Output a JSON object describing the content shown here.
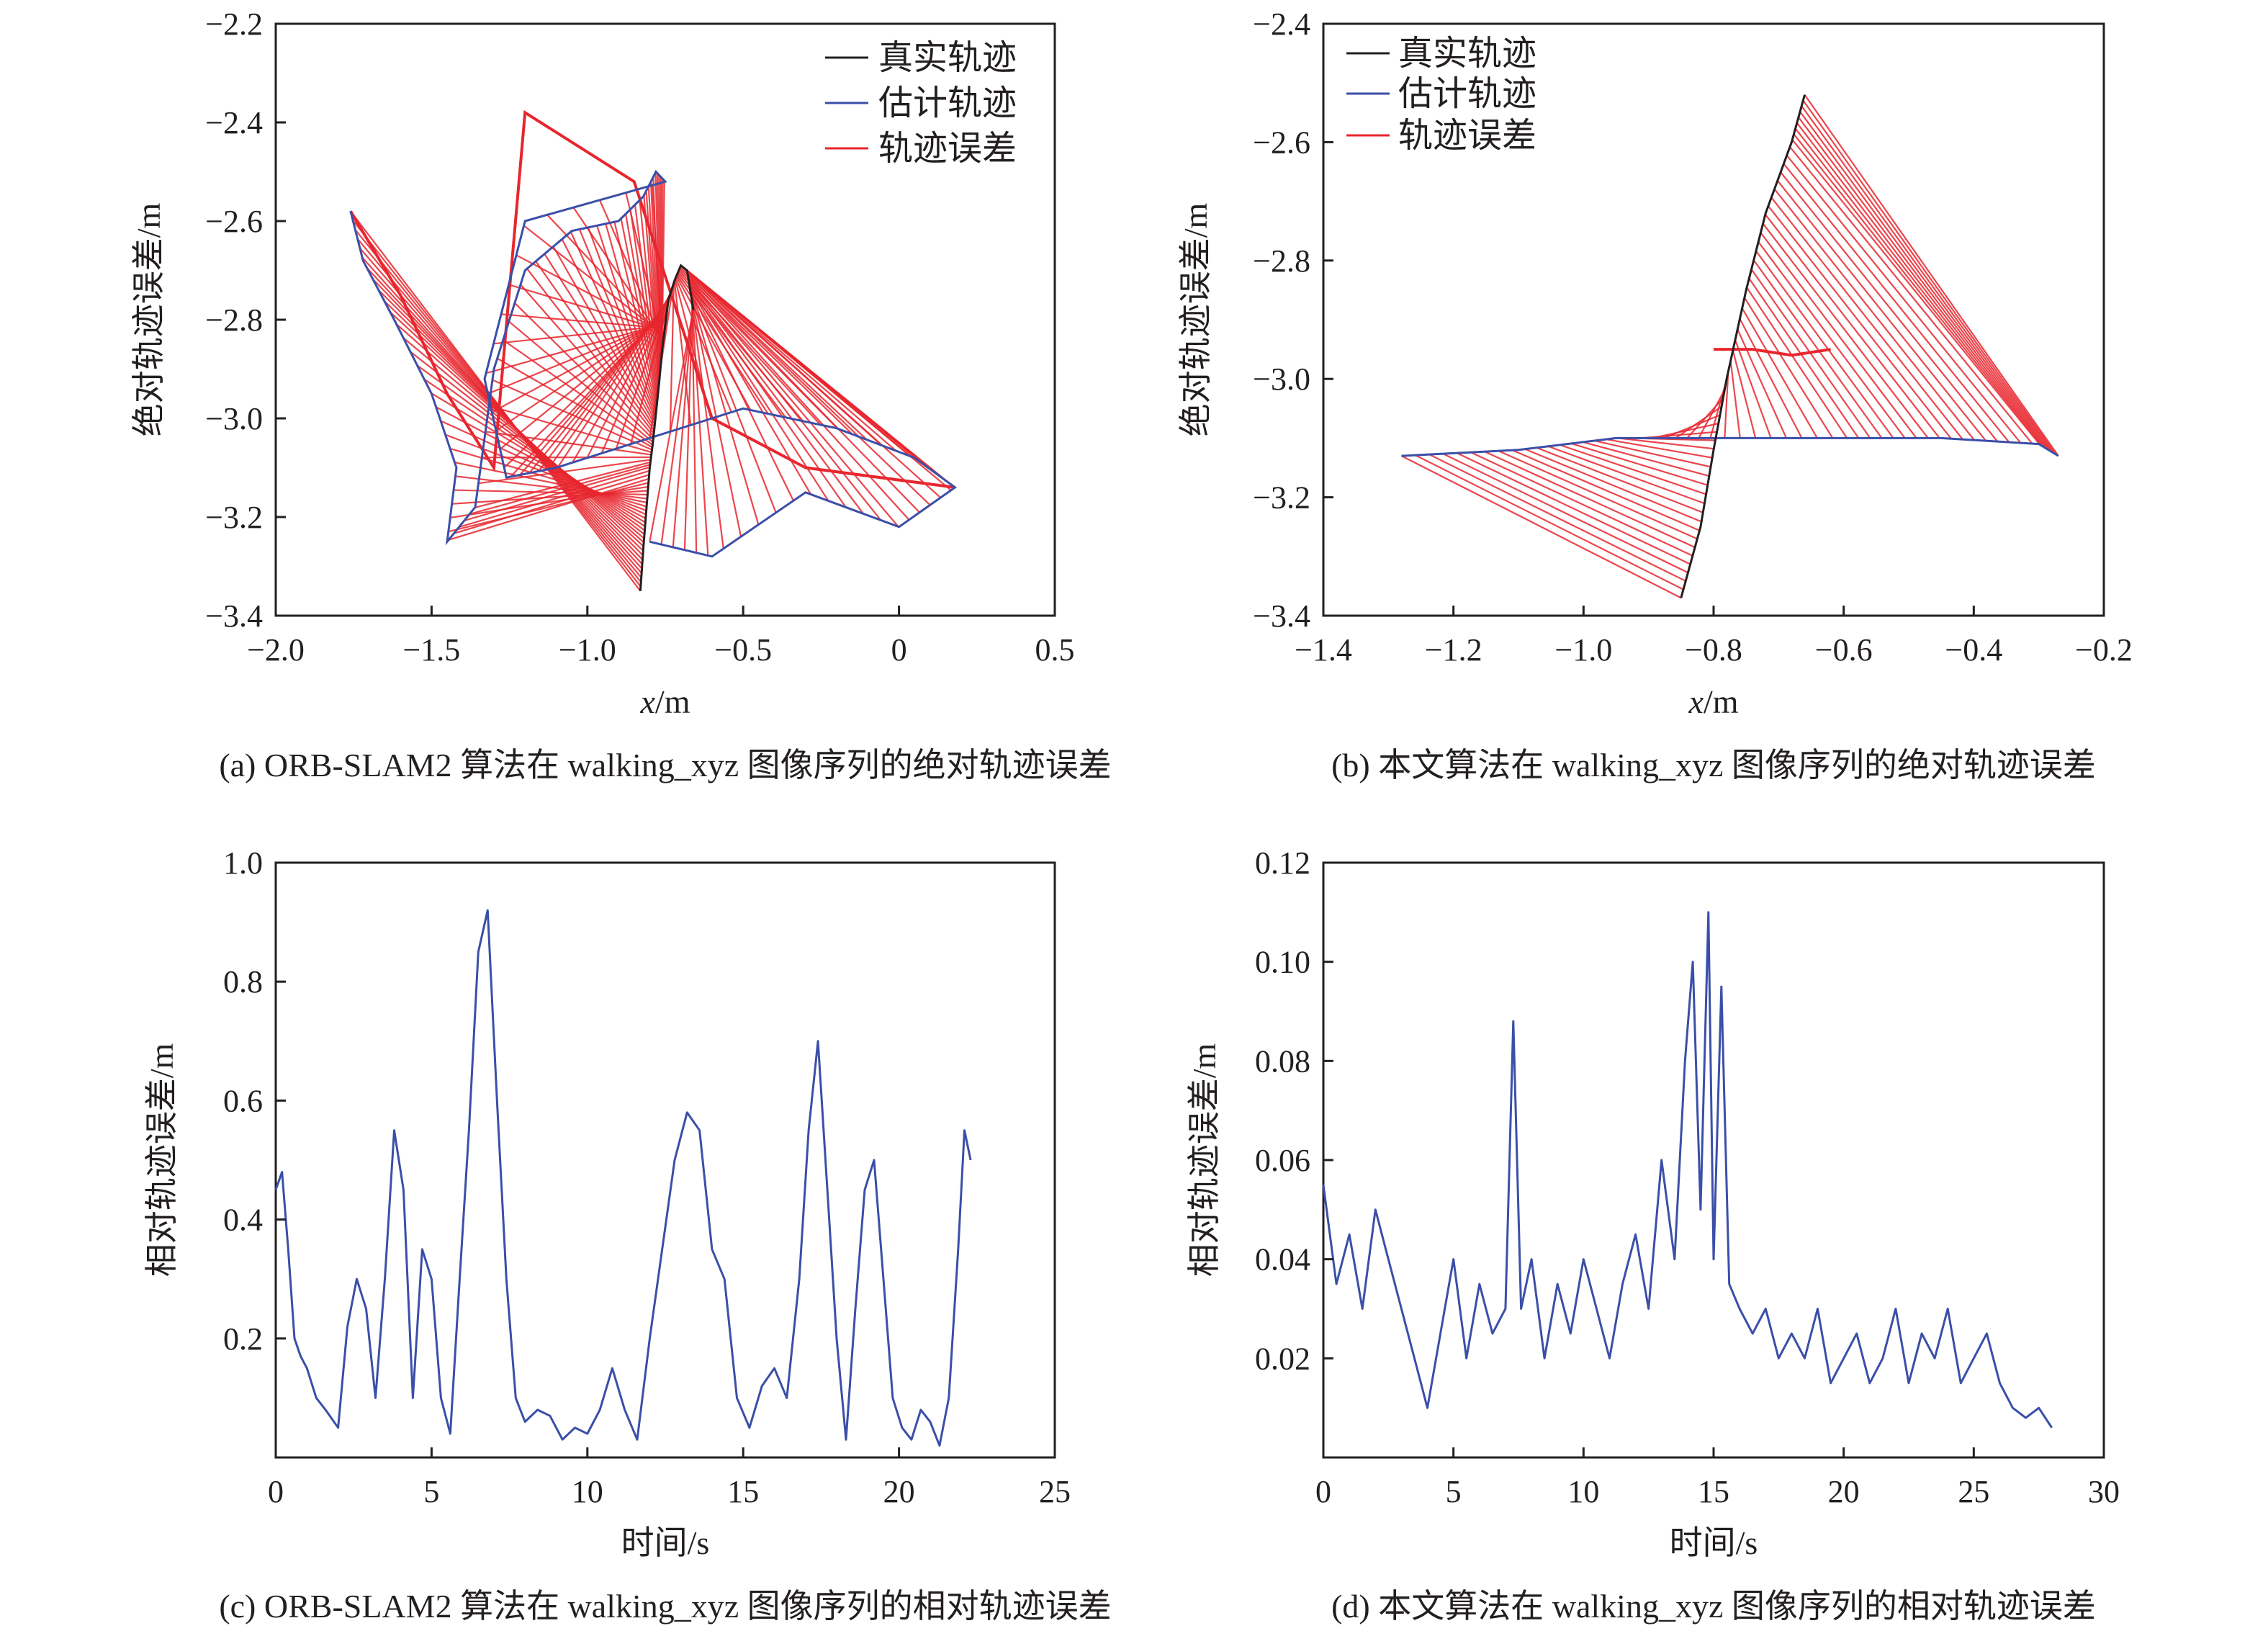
{
  "chart_data": [
    {
      "id": "a",
      "type": "line",
      "caption": "(a) ORB-SLAM2 算法在 walking_xyz 图像序列的绝对轨迹误差",
      "xlabel_var": "x",
      "xlabel_unit": "/m",
      "ylabel": "绝对轨迹误差/m",
      "xlim": [
        -2.0,
        0.5
      ],
      "ylim": [
        -3.4,
        -2.2
      ],
      "xticks": [
        "−2.0",
        "−1.5",
        "−1.0",
        "−0.5",
        "0",
        "0.5"
      ],
      "yticks": [
        "−2.2",
        "−2.4",
        "−2.6",
        "−2.8",
        "−3.0",
        "−3.2",
        "−3.4"
      ],
      "legend": {
        "position": "top-right",
        "entries": [
          "真实轨迹",
          "估计轨迹",
          "轨迹误差"
        ]
      },
      "colors": {
        "gt": "#231f20",
        "est": "#3b4fa8",
        "err": "#e8262e"
      },
      "series": [
        {
          "name": "真实轨迹",
          "x": [
            -0.83,
            -0.82,
            -0.81,
            -0.8,
            -0.79,
            -0.78,
            -0.77,
            -0.76,
            -0.75,
            -0.74,
            -0.72,
            -0.7,
            -0.68,
            -0.67,
            -0.66
          ],
          "y": [
            -3.35,
            -3.26,
            -3.18,
            -3.1,
            -3.05,
            -2.99,
            -2.93,
            -2.86,
            -2.81,
            -2.76,
            -2.72,
            -2.69,
            -2.7,
            -2.74,
            -2.78
          ]
        },
        {
          "name": "估计轨迹",
          "x": [
            -1.76,
            -1.72,
            -1.62,
            -1.5,
            -1.42,
            -1.45,
            -1.36,
            -1.3,
            -1.2,
            -1.05,
            -0.9,
            -0.82,
            -0.78,
            -0.75,
            -1.2,
            -1.33,
            -1.26,
            -1.1,
            -0.85,
            -0.5,
            -0.2,
            0.05,
            0.18,
            0.0,
            -0.3,
            -0.6,
            -0.8
          ],
          "y": [
            -2.58,
            -2.68,
            -2.8,
            -2.95,
            -3.1,
            -3.25,
            -3.18,
            -2.9,
            -2.7,
            -2.62,
            -2.6,
            -2.55,
            -2.5,
            -2.52,
            -2.6,
            -2.92,
            -3.12,
            -3.1,
            -3.05,
            -2.98,
            -3.02,
            -3.08,
            -3.14,
            -3.22,
            -3.15,
            -3.28,
            -3.25
          ]
        },
        {
          "name": "轨迹误差",
          "x": [
            -1.76,
            -1.6,
            -1.45,
            -1.3,
            -1.2,
            -0.85,
            -0.6,
            -0.3,
            0.18
          ],
          "y": [
            -2.58,
            -2.75,
            -2.95,
            -3.1,
            -2.38,
            -2.52,
            -3.0,
            -3.1,
            -3.14
          ]
        }
      ]
    },
    {
      "id": "b",
      "type": "line",
      "caption": "(b) 本文算法在 walking_xyz 图像序列的绝对轨迹误差",
      "xlabel_var": "x",
      "xlabel_unit": "/m",
      "ylabel": "绝对轨迹误差/m",
      "xlim": [
        -1.4,
        -0.2
      ],
      "ylim": [
        -3.4,
        -2.4
      ],
      "xticks": [
        "−1.4",
        "−1.2",
        "−1.0",
        "−0.8",
        "−0.6",
        "−0.4",
        "−0.2"
      ],
      "yticks": [
        "−2.4",
        "−2.6",
        "−2.8",
        "−3.0",
        "−3.2",
        "−3.4"
      ],
      "legend": {
        "position": "top-left",
        "entries": [
          "真实轨迹",
          "估计轨迹",
          "轨迹误差"
        ]
      },
      "colors": {
        "gt": "#231f20",
        "est": "#3b4fa8",
        "err": "#e8262e"
      },
      "series": [
        {
          "name": "真实轨迹",
          "x": [
            -0.85,
            -0.82,
            -0.8,
            -0.78,
            -0.75,
            -0.72,
            -0.68,
            -0.66
          ],
          "y": [
            -3.37,
            -3.25,
            -3.12,
            -3.0,
            -2.85,
            -2.72,
            -2.6,
            -2.52
          ]
        },
        {
          "name": "估计轨迹",
          "x": [
            -1.28,
            -1.1,
            -0.95,
            -0.8,
            -0.6,
            -0.45,
            -0.3,
            -0.27
          ],
          "y": [
            -3.13,
            -3.12,
            -3.1,
            -3.1,
            -3.1,
            -3.1,
            -3.11,
            -3.13
          ]
        },
        {
          "name": "轨迹误差",
          "x": [
            -0.8,
            -0.74,
            -0.68,
            -0.62
          ],
          "y": [
            -2.95,
            -2.95,
            -2.96,
            -2.95
          ]
        }
      ]
    },
    {
      "id": "c",
      "type": "line",
      "caption": "(c) ORB-SLAM2 算法在 walking_xyz 图像序列的相对轨迹误差",
      "xlabel": "时间/s",
      "ylabel": "相对轨迹误差/m",
      "xlim": [
        0,
        25
      ],
      "ylim": [
        0,
        1.0
      ],
      "xticks": [
        "0",
        "5",
        "10",
        "15",
        "20",
        "25"
      ],
      "yticks": [
        "1.0",
        "0.8",
        "0.6",
        "0.4",
        "0.2"
      ],
      "colors": {
        "line": "#3b4fa8"
      },
      "series": [
        {
          "name": "",
          "x": [
            0,
            0.2,
            0.4,
            0.6,
            0.8,
            1.0,
            1.3,
            1.6,
            2.0,
            2.3,
            2.6,
            2.9,
            3.2,
            3.5,
            3.8,
            4.1,
            4.4,
            4.7,
            5.0,
            5.3,
            5.6,
            5.9,
            6.2,
            6.5,
            6.8,
            7.1,
            7.4,
            7.7,
            8.0,
            8.4,
            8.8,
            9.2,
            9.6,
            10.0,
            10.4,
            10.8,
            11.2,
            11.6,
            12.0,
            12.4,
            12.8,
            13.2,
            13.6,
            14.0,
            14.4,
            14.8,
            15.2,
            15.6,
            16.0,
            16.4,
            16.8,
            17.1,
            17.4,
            17.7,
            18.0,
            18.3,
            18.6,
            18.9,
            19.2,
            19.5,
            19.8,
            20.1,
            20.4,
            20.7,
            21.0,
            21.3,
            21.6,
            21.9,
            22.1,
            22.3
          ],
          "y": [
            0.45,
            0.48,
            0.35,
            0.2,
            0.17,
            0.15,
            0.1,
            0.08,
            0.05,
            0.22,
            0.3,
            0.25,
            0.1,
            0.3,
            0.55,
            0.45,
            0.1,
            0.35,
            0.3,
            0.1,
            0.04,
            0.3,
            0.55,
            0.85,
            0.92,
            0.6,
            0.3,
            0.1,
            0.06,
            0.08,
            0.07,
            0.03,
            0.05,
            0.04,
            0.08,
            0.15,
            0.08,
            0.03,
            0.2,
            0.35,
            0.5,
            0.58,
            0.55,
            0.35,
            0.3,
            0.1,
            0.05,
            0.12,
            0.15,
            0.1,
            0.3,
            0.55,
            0.7,
            0.45,
            0.2,
            0.03,
            0.25,
            0.45,
            0.5,
            0.3,
            0.1,
            0.05,
            0.03,
            0.08,
            0.06,
            0.02,
            0.1,
            0.35,
            0.55,
            0.5
          ]
        }
      ]
    },
    {
      "id": "d",
      "type": "line",
      "caption": "(d) 本文算法在 walking_xyz 图像序列的相对轨迹误差",
      "xlabel": "时间/s",
      "ylabel": "相对轨迹误差/m",
      "xlim": [
        0,
        30
      ],
      "ylim": [
        0,
        0.12
      ],
      "xticks": [
        "0",
        "5",
        "10",
        "15",
        "20",
        "25",
        "30"
      ],
      "yticks": [
        "0.12",
        "0.10",
        "0.08",
        "0.06",
        "0.04",
        "0.02"
      ],
      "colors": {
        "line": "#3b4fa8"
      },
      "series": [
        {
          "name": "",
          "x": [
            0,
            0.5,
            1.0,
            1.5,
            2.0,
            2.5,
            3.0,
            3.5,
            4.0,
            4.5,
            5.0,
            5.5,
            6.0,
            6.5,
            7.0,
            7.3,
            7.6,
            8.0,
            8.5,
            9.0,
            9.5,
            10.0,
            10.5,
            11.0,
            11.5,
            12.0,
            12.5,
            13.0,
            13.5,
            13.9,
            14.2,
            14.5,
            14.8,
            15.0,
            15.3,
            15.6,
            16.0,
            16.5,
            17.0,
            17.5,
            18.0,
            18.5,
            19.0,
            19.5,
            20.0,
            20.5,
            21.0,
            21.5,
            22.0,
            22.5,
            23.0,
            23.5,
            24.0,
            24.5,
            25.0,
            25.5,
            26.0,
            26.5,
            27.0,
            27.5,
            28.0
          ],
          "y": [
            0.055,
            0.035,
            0.045,
            0.03,
            0.05,
            0.04,
            0.03,
            0.02,
            0.01,
            0.025,
            0.04,
            0.02,
            0.035,
            0.025,
            0.03,
            0.088,
            0.03,
            0.04,
            0.02,
            0.035,
            0.025,
            0.04,
            0.03,
            0.02,
            0.035,
            0.045,
            0.03,
            0.06,
            0.04,
            0.08,
            0.1,
            0.05,
            0.11,
            0.04,
            0.095,
            0.035,
            0.03,
            0.025,
            0.03,
            0.02,
            0.025,
            0.02,
            0.03,
            0.015,
            0.02,
            0.025,
            0.015,
            0.02,
            0.03,
            0.015,
            0.025,
            0.02,
            0.03,
            0.015,
            0.02,
            0.025,
            0.015,
            0.01,
            0.008,
            0.01,
            0.006
          ]
        }
      ]
    }
  ]
}
